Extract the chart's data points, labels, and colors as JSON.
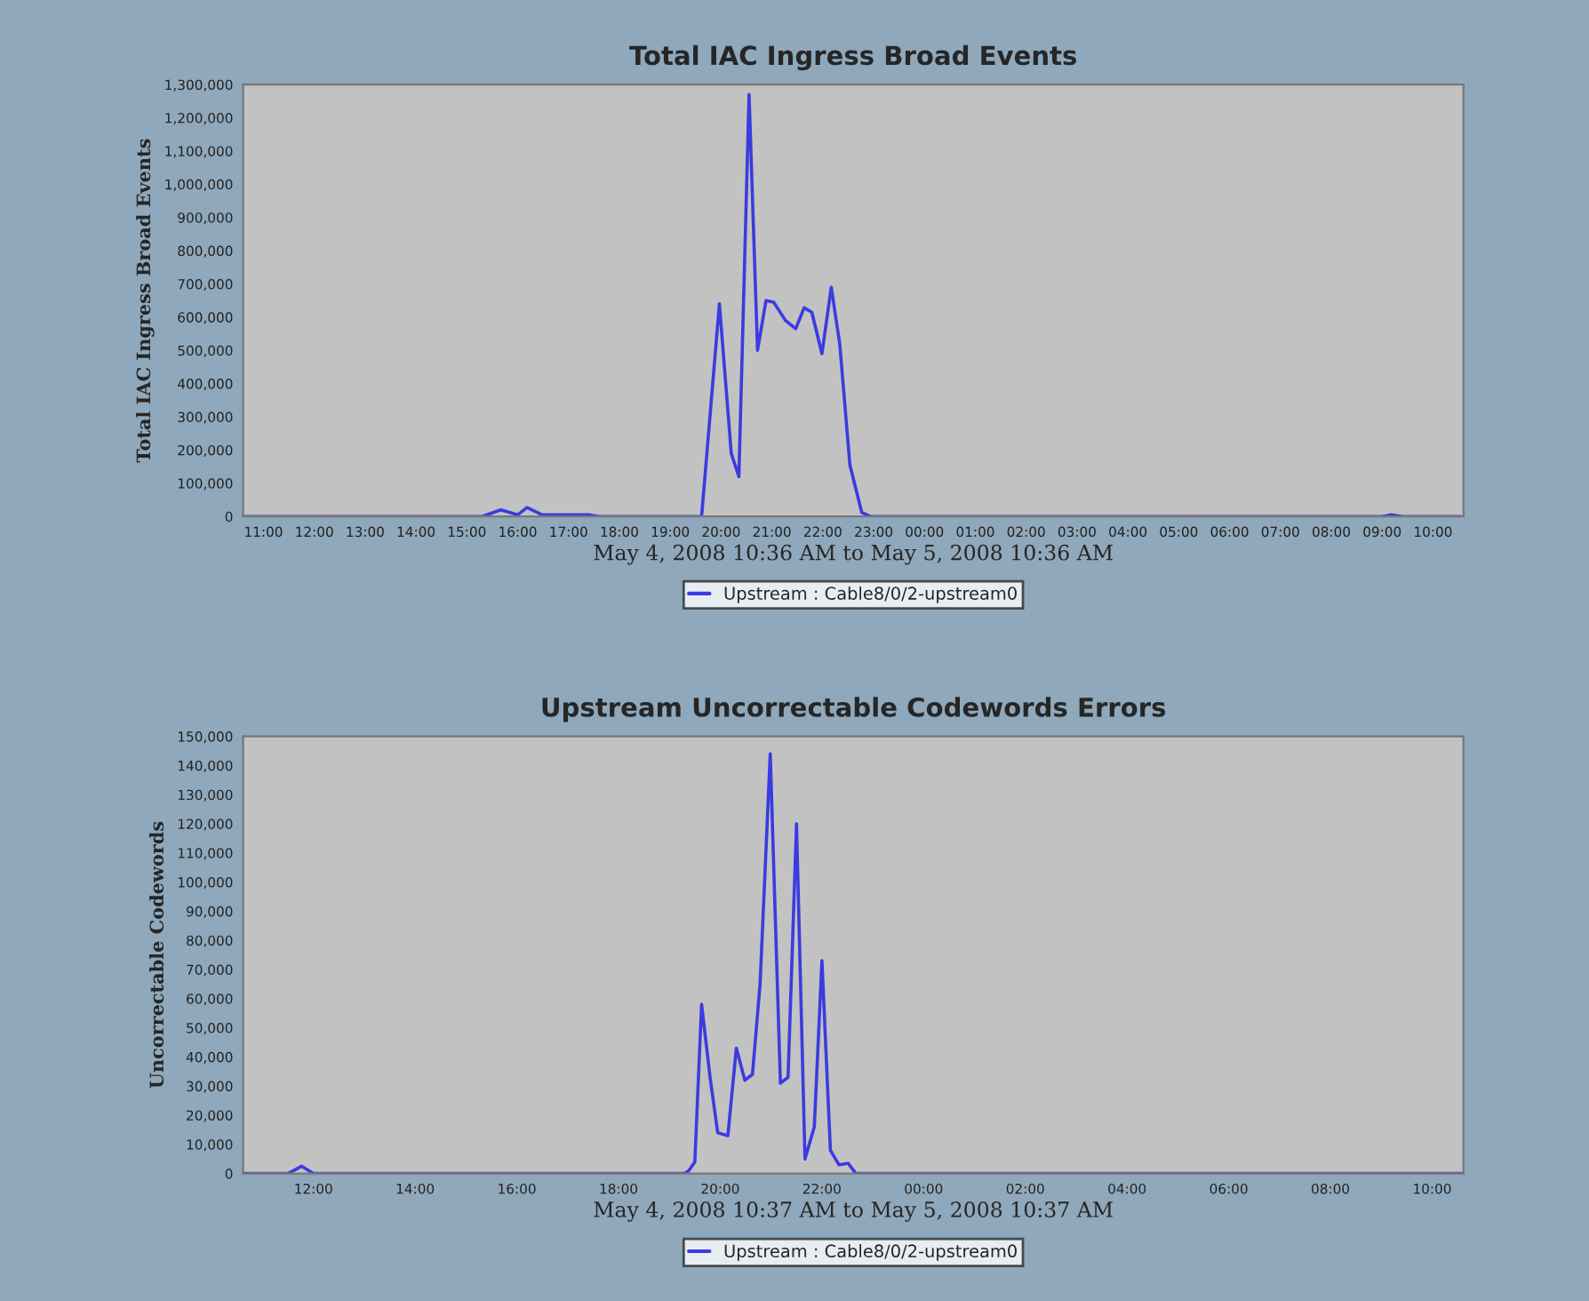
{
  "chart_data": [
    {
      "type": "line",
      "title": "Total IAC Ingress Broad Events",
      "xlabel": "May 4, 2008 10:36 AM to May 5, 2008 10:36 AM",
      "ylabel": "Total IAC Ingress Broad Events",
      "series": [
        {
          "name": "Upstream : Cable8/0/2-upstream0",
          "color": "#3b3be0",
          "x": [
            "2008-05-04T10:36",
            "2008-05-04T15:18",
            "2008-05-04T15:40",
            "2008-05-04T16:00",
            "2008-05-04T16:11",
            "2008-05-04T16:29",
            "2008-05-04T17:24",
            "2008-05-04T17:36",
            "2008-05-04T19:37",
            "2008-05-04T19:58",
            "2008-05-04T20:12",
            "2008-05-04T20:21",
            "2008-05-04T20:33",
            "2008-05-04T20:43",
            "2008-05-04T20:53",
            "2008-05-04T21:02",
            "2008-05-04T21:16",
            "2008-05-04T21:28",
            "2008-05-04T21:38",
            "2008-05-04T21:47",
            "2008-05-04T21:59",
            "2008-05-04T22:10",
            "2008-05-04T22:20",
            "2008-05-04T22:32",
            "2008-05-04T22:46",
            "2008-05-04T22:56",
            "2008-05-05T09:00",
            "2008-05-05T09:11",
            "2008-05-05T09:24",
            "2008-05-05T10:33"
          ],
          "values": [
            0,
            0,
            20000,
            5000,
            27000,
            5000,
            5000,
            0,
            0,
            640000,
            190000,
            120000,
            1270000,
            500000,
            650000,
            645000,
            590000,
            565000,
            628000,
            615000,
            490000,
            690000,
            520000,
            155000,
            12000,
            0,
            0,
            5000,
            0,
            0
          ]
        }
      ],
      "xlim": [
        "2008-05-04T10:36",
        "2008-05-05T10:36"
      ],
      "ylim": [
        0,
        1300000
      ],
      "xticks": [
        {
          "value": "2008-05-04T11:00",
          "label": "11:00"
        },
        {
          "value": "2008-05-04T12:00",
          "label": "12:00"
        },
        {
          "value": "2008-05-04T13:00",
          "label": "13:00"
        },
        {
          "value": "2008-05-04T14:00",
          "label": "14:00"
        },
        {
          "value": "2008-05-04T15:00",
          "label": "15:00"
        },
        {
          "value": "2008-05-04T16:00",
          "label": "16:00"
        },
        {
          "value": "2008-05-04T17:00",
          "label": "17:00"
        },
        {
          "value": "2008-05-04T18:00",
          "label": "18:00"
        },
        {
          "value": "2008-05-04T19:00",
          "label": "19:00"
        },
        {
          "value": "2008-05-04T20:00",
          "label": "20:00"
        },
        {
          "value": "2008-05-04T21:00",
          "label": "21:00"
        },
        {
          "value": "2008-05-04T22:00",
          "label": "22:00"
        },
        {
          "value": "2008-05-04T23:00",
          "label": "23:00"
        },
        {
          "value": "2008-05-05T00:00",
          "label": "00:00"
        },
        {
          "value": "2008-05-05T01:00",
          "label": "01:00"
        },
        {
          "value": "2008-05-05T02:00",
          "label": "02:00"
        },
        {
          "value": "2008-05-05T03:00",
          "label": "03:00"
        },
        {
          "value": "2008-05-05T04:00",
          "label": "04:00"
        },
        {
          "value": "2008-05-05T05:00",
          "label": "05:00"
        },
        {
          "value": "2008-05-05T06:00",
          "label": "06:00"
        },
        {
          "value": "2008-05-05T07:00",
          "label": "07:00"
        },
        {
          "value": "2008-05-05T08:00",
          "label": "08:00"
        },
        {
          "value": "2008-05-05T09:00",
          "label": "09:00"
        },
        {
          "value": "2008-05-05T10:00",
          "label": "10:00"
        }
      ],
      "yticks": [
        0,
        {
          "value": 100000,
          "label": "100,000"
        },
        {
          "value": 200000,
          "label": "200,000"
        },
        {
          "value": 300000,
          "label": "300,000"
        },
        {
          "value": 400000,
          "label": "400,000"
        },
        {
          "value": 500000,
          "label": "500,000"
        },
        {
          "value": 600000,
          "label": "600,000"
        },
        {
          "value": 700000,
          "label": "700,000"
        },
        {
          "value": 800000,
          "label": "800,000"
        },
        {
          "value": 900000,
          "label": "900,000"
        },
        {
          "value": 1000000,
          "label": "1,000,000"
        },
        {
          "value": 1100000,
          "label": "1,100,000"
        },
        {
          "value": 1200000,
          "label": "1,200,000"
        },
        {
          "value": 1300000,
          "label": "1,300,000"
        }
      ],
      "grid": false,
      "legend": "bottom",
      "marker": "none",
      "line_style": "solid"
    },
    {
      "type": "line",
      "title": "Upstream Uncorrectable Codewords Errors",
      "xlabel": "May 4, 2008 10:37 AM to May 5, 2008 10:37 AM",
      "ylabel": "Uncorrectable Codewords",
      "series": [
        {
          "name": "Upstream : Cable8/0/2-upstream0",
          "color": "#3b3be0",
          "x": [
            "2008-05-04T10:37",
            "2008-05-04T11:30",
            "2008-05-04T11:46",
            "2008-05-04T12:00",
            "2008-05-04T19:18",
            "2008-05-04T19:23",
            "2008-05-04T19:30",
            "2008-05-04T19:38",
            "2008-05-04T19:48",
            "2008-05-04T19:57",
            "2008-05-04T20:09",
            "2008-05-04T20:19",
            "2008-05-04T20:29",
            "2008-05-04T20:38",
            "2008-05-04T20:47",
            "2008-05-04T20:59",
            "2008-05-04T21:11",
            "2008-05-04T21:20",
            "2008-05-04T21:30",
            "2008-05-04T21:40",
            "2008-05-04T21:51",
            "2008-05-04T22:00",
            "2008-05-04T22:10",
            "2008-05-04T22:20",
            "2008-05-04T22:31",
            "2008-05-04T22:40",
            "2008-05-05T10:36"
          ],
          "values": [
            0,
            0,
            2500,
            0,
            0,
            1000,
            4000,
            58000,
            33000,
            14000,
            13000,
            43000,
            32000,
            34000,
            65000,
            144000,
            31000,
            33000,
            120000,
            5000,
            16000,
            73000,
            8000,
            3000,
            3500,
            0,
            0
          ]
        }
      ],
      "xlim": [
        "2008-05-04T10:37",
        "2008-05-05T10:37"
      ],
      "ylim": [
        0,
        150000
      ],
      "xticks": [
        {
          "value": "2008-05-04T12:00",
          "label": "12:00"
        },
        {
          "value": "2008-05-04T14:00",
          "label": "14:00"
        },
        {
          "value": "2008-05-04T16:00",
          "label": "16:00"
        },
        {
          "value": "2008-05-04T18:00",
          "label": "18:00"
        },
        {
          "value": "2008-05-04T20:00",
          "label": "20:00"
        },
        {
          "value": "2008-05-04T22:00",
          "label": "22:00"
        },
        {
          "value": "2008-05-05T00:00",
          "label": "00:00"
        },
        {
          "value": "2008-05-05T02:00",
          "label": "02:00"
        },
        {
          "value": "2008-05-05T04:00",
          "label": "04:00"
        },
        {
          "value": "2008-05-05T06:00",
          "label": "06:00"
        },
        {
          "value": "2008-05-05T08:00",
          "label": "08:00"
        },
        {
          "value": "2008-05-05T10:00",
          "label": "10:00"
        }
      ],
      "yticks": [
        0,
        {
          "value": 10000,
          "label": "10,000"
        },
        {
          "value": 20000,
          "label": "20,000"
        },
        {
          "value": 30000,
          "label": "30,000"
        },
        {
          "value": 40000,
          "label": "40,000"
        },
        {
          "value": 50000,
          "label": "50,000"
        },
        {
          "value": 60000,
          "label": "60,000"
        },
        {
          "value": 70000,
          "label": "70,000"
        },
        {
          "value": 80000,
          "label": "80,000"
        },
        {
          "value": 90000,
          "label": "90,000"
        },
        {
          "value": 100000,
          "label": "100,000"
        },
        {
          "value": 110000,
          "label": "110,000"
        },
        {
          "value": 120000,
          "label": "120,000"
        },
        {
          "value": 130000,
          "label": "130,000"
        },
        {
          "value": 140000,
          "label": "140,000"
        },
        {
          "value": 150000,
          "label": "150,000"
        }
      ],
      "grid": false,
      "legend": "bottom",
      "marker": "none",
      "line_style": "solid"
    }
  ]
}
